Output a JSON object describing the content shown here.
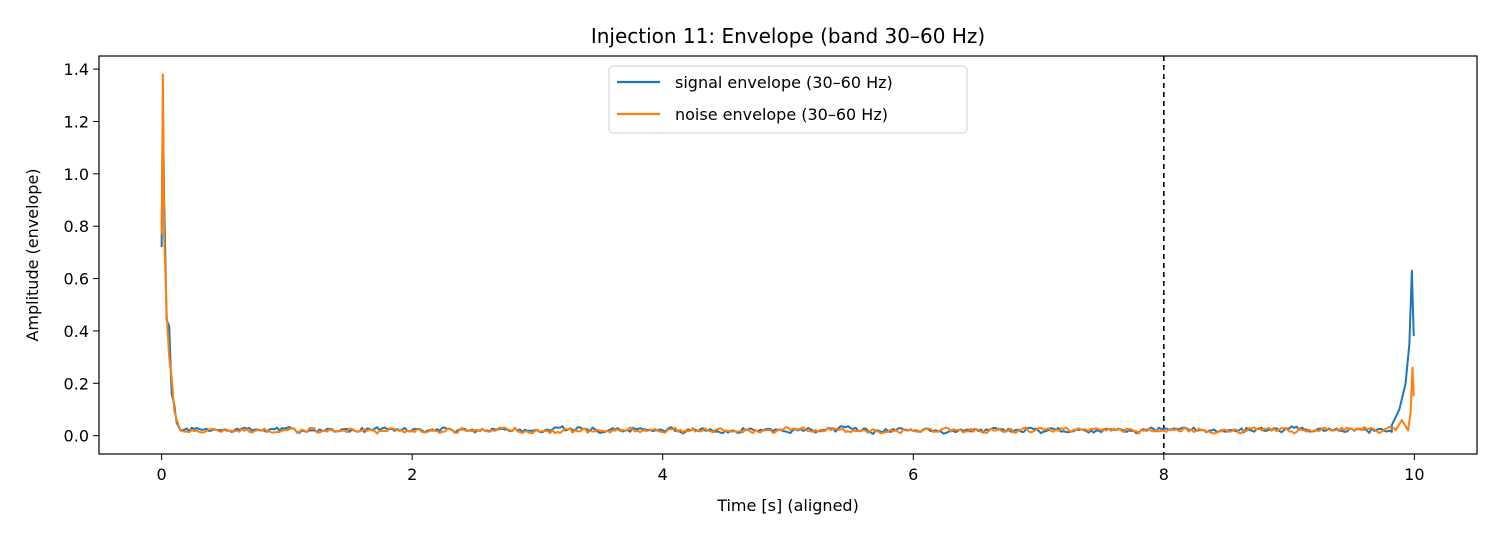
{
  "chart_data": {
    "type": "line",
    "title": "Injection 11: Envelope (band 30–60 Hz)",
    "xlabel": "Time [s] (aligned)",
    "ylabel": "Amplitude (envelope)",
    "xlim": [
      -0.5,
      10.5
    ],
    "ylim": [
      -0.07,
      1.45
    ],
    "xticks": [
      0,
      2,
      4,
      6,
      8,
      10
    ],
    "xtick_labels": [
      "0",
      "2",
      "4",
      "6",
      "8",
      "10"
    ],
    "yticks": [
      0.0,
      0.2,
      0.4,
      0.6,
      0.8,
      1.0,
      1.2,
      1.4
    ],
    "ytick_labels": [
      "0.0",
      "0.2",
      "0.4",
      "0.6",
      "0.8",
      "1.0",
      "1.2",
      "1.4"
    ],
    "grid": false,
    "legend_position": "top-center",
    "vline": {
      "x": 8,
      "style": "dashed",
      "color": "#000000"
    },
    "series": [
      {
        "name": "signal envelope (30–60 Hz)",
        "color": "#1f77b4",
        "baseline": 0.022,
        "noise": 0.01,
        "seed": 7,
        "key_points": [
          [
            0.0,
            0.72
          ],
          [
            0.01,
            1.28
          ],
          [
            0.02,
            0.9
          ],
          [
            0.04,
            0.44
          ],
          [
            0.06,
            0.42
          ],
          [
            0.08,
            0.16
          ],
          [
            0.1,
            0.12
          ],
          [
            0.12,
            0.05
          ],
          [
            0.15,
            0.02
          ],
          [
            9.82,
            0.04
          ],
          [
            9.88,
            0.1
          ],
          [
            9.93,
            0.2
          ],
          [
            9.96,
            0.35
          ],
          [
            9.98,
            0.63
          ],
          [
            9.995,
            0.38
          ]
        ]
      },
      {
        "name": "noise envelope (30–60 Hz)",
        "color": "#ff7f0e",
        "baseline": 0.02,
        "noise": 0.01,
        "seed": 19,
        "key_points": [
          [
            0.0,
            0.77
          ],
          [
            0.01,
            1.38
          ],
          [
            0.02,
            0.76
          ],
          [
            0.04,
            0.47
          ],
          [
            0.06,
            0.3
          ],
          [
            0.08,
            0.22
          ],
          [
            0.1,
            0.1
          ],
          [
            0.12,
            0.06
          ],
          [
            0.15,
            0.02
          ],
          [
            9.85,
            0.02
          ],
          [
            9.9,
            0.06
          ],
          [
            9.95,
            0.02
          ],
          [
            9.97,
            0.09
          ],
          [
            9.985,
            0.26
          ],
          [
            9.995,
            0.15
          ]
        ]
      }
    ]
  }
}
